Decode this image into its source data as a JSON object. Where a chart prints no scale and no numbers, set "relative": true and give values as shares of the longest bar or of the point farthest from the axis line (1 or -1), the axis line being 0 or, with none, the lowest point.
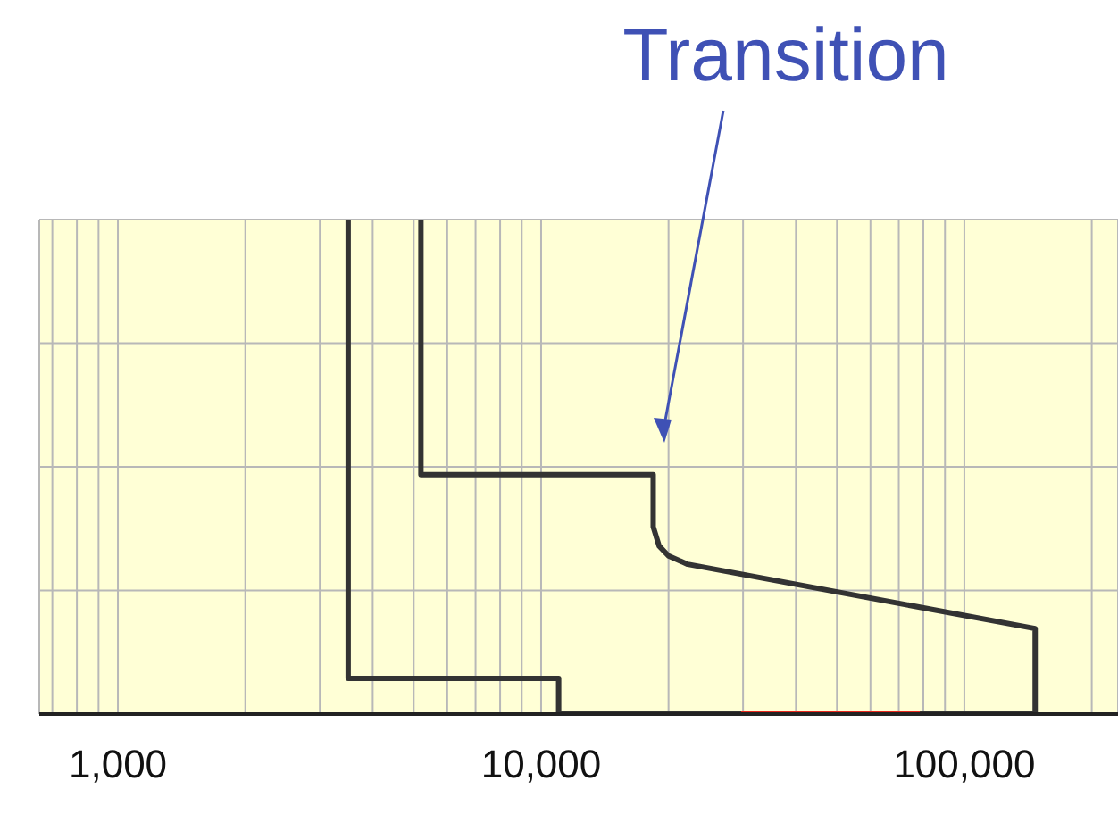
{
  "chart_data": {
    "type": "line",
    "relative": true,
    "log": "x",
    "grid": true,
    "marker": "none",
    "line_style": "solid",
    "annotations": [
      "Transition"
    ],
    "xlim": [
      652,
      230700
    ],
    "xticks": [
      {
        "value": 700,
        "label": null
      },
      {
        "value": 800,
        "label": null
      },
      {
        "value": 900,
        "label": null
      },
      {
        "value": 1000,
        "label": "1,000"
      },
      {
        "value": 2000,
        "label": null
      },
      {
        "value": 3000,
        "label": null
      },
      {
        "value": 4000,
        "label": null
      },
      {
        "value": 5000,
        "label": null
      },
      {
        "value": 6000,
        "label": null
      },
      {
        "value": 7000,
        "label": null
      },
      {
        "value": 8000,
        "label": null
      },
      {
        "value": 9000,
        "label": null
      },
      {
        "value": 10000,
        "label": "10,000"
      },
      {
        "value": 20000,
        "label": null
      },
      {
        "value": 30000,
        "label": null
      },
      {
        "value": 40000,
        "label": null
      },
      {
        "value": 50000,
        "label": null
      },
      {
        "value": 60000,
        "label": null
      },
      {
        "value": 70000,
        "label": null
      },
      {
        "value": 80000,
        "label": null
      },
      {
        "value": 90000,
        "label": null
      },
      {
        "value": 100000,
        "label": "100,000"
      },
      {
        "value": 200000,
        "label": null
      }
    ],
    "series": [
      {
        "color": "#333333",
        "x": [
          3500,
          3500,
          11000,
          11000,
          147000
        ],
        "values": [
          1,
          0.072,
          0.072,
          0,
          0
        ]
      },
      {
        "color": "#333333",
        "x": [
          5200,
          5200,
          18400,
          18400,
          19000,
          20000,
          22200,
          147000,
          147000
        ],
        "values": [
          1,
          0.484,
          0.484,
          0.379,
          0.34,
          0.32,
          0.303,
          0.173,
          0
        ]
      },
      {
        "color": "#e8261c",
        "x": [
          29700,
          78500
        ],
        "values": [
          0,
          0
        ]
      }
    ]
  }
}
